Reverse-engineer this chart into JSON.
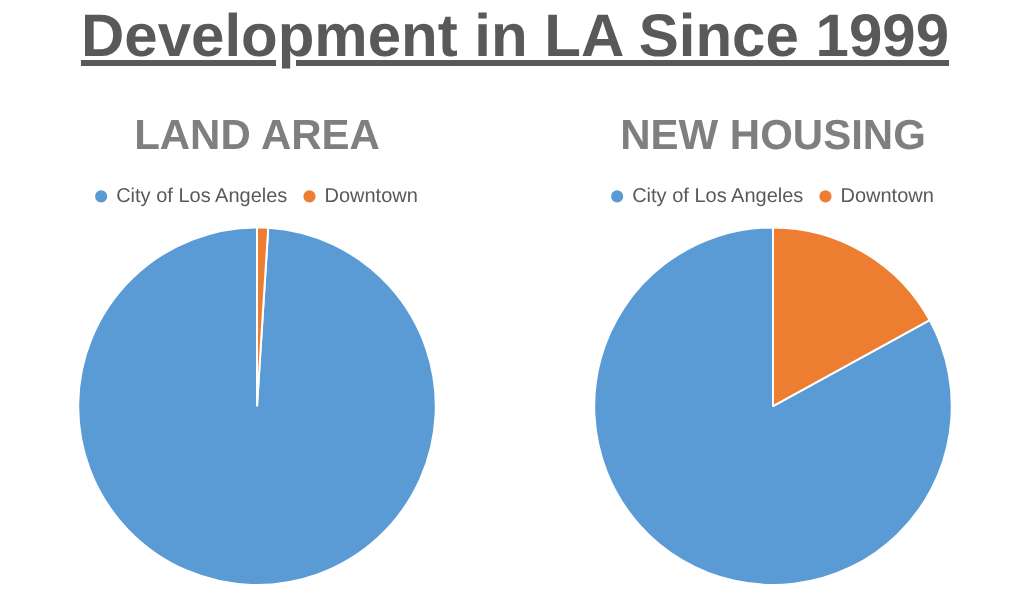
{
  "chart_data": [
    {
      "type": "other",
      "title": "Development in LA Since 1999"
    },
    {
      "type": "pie",
      "title": "LAND AREA",
      "categories": [
        "City of Los Angeles",
        "Downtown"
      ],
      "values": [
        99,
        1
      ],
      "colors": [
        "#5b9bd5",
        "#ed7d31"
      ],
      "legend": "top"
    },
    {
      "type": "pie",
      "title": "NEW HOUSING",
      "categories": [
        "City of Los Angeles",
        "Downtown"
      ],
      "values": [
        83,
        17
      ],
      "colors": [
        "#5b9bd5",
        "#ed7d31"
      ],
      "legend": "top"
    }
  ]
}
